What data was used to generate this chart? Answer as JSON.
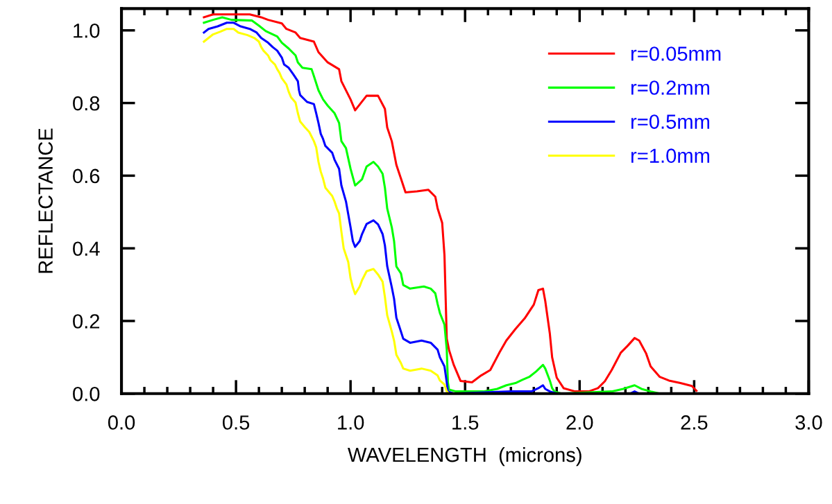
{
  "chart_data": {
    "type": "line",
    "xlabel": "WAVELENGTH  (microns)",
    "ylabel": "REFLECTANCE",
    "xlim": [
      0,
      3
    ],
    "ylim": [
      0,
      1.06
    ],
    "xticks": [
      {
        "value": 0,
        "label": "0.0"
      },
      {
        "value": 0.5,
        "label": "0.5"
      },
      {
        "value": 1,
        "label": "1.0"
      },
      {
        "value": 1.5,
        "label": "1.5"
      },
      {
        "value": 2,
        "label": "2.0"
      },
      {
        "value": 2.5,
        "label": "2.5"
      },
      {
        "value": 3,
        "label": "3.0"
      }
    ],
    "yticks": [
      {
        "value": 0,
        "label": "0.0"
      },
      {
        "value": 0.2,
        "label": "0.2"
      },
      {
        "value": 0.4,
        "label": "0.4"
      },
      {
        "value": 0.6,
        "label": "0.6"
      },
      {
        "value": 0.8,
        "label": "0.8"
      },
      {
        "value": 1,
        "label": "1.0"
      }
    ],
    "grid": false,
    "legend": "top right",
    "marker": "none",
    "line_style": "solid",
    "series": [
      {
        "name": "r=0.05mm",
        "color": "#ff0000",
        "x": [
          0.36,
          0.4,
          0.56,
          0.61,
          0.64,
          0.7,
          0.72,
          0.76,
          0.78,
          0.84,
          0.86,
          0.9,
          0.95,
          0.96,
          1.0,
          1.02,
          1.07,
          1.12,
          1.15,
          1.16,
          1.18,
          1.2,
          1.22,
          1.24,
          1.29,
          1.34,
          1.37,
          1.38,
          1.4,
          1.41,
          1.42,
          1.43,
          1.45,
          1.48,
          1.53,
          1.57,
          1.61,
          1.65,
          1.68,
          1.72,
          1.76,
          1.8,
          1.82,
          1.84,
          1.85,
          1.87,
          1.88,
          1.9,
          1.93,
          1.98,
          2.04,
          2.08,
          2.11,
          2.14,
          2.18,
          2.21,
          2.24,
          2.26,
          2.29,
          2.31,
          2.35,
          2.39,
          2.44,
          2.49,
          2.51
        ],
        "values": [
          1.036,
          1.044,
          1.044,
          1.036,
          1.029,
          1.019,
          1.004,
          0.994,
          0.979,
          0.969,
          0.94,
          0.912,
          0.893,
          0.86,
          0.81,
          0.78,
          0.82,
          0.82,
          0.784,
          0.733,
          0.695,
          0.63,
          0.592,
          0.554,
          0.557,
          0.561,
          0.542,
          0.51,
          0.47,
          0.381,
          0.151,
          0.12,
          0.08,
          0.035,
          0.031,
          0.05,
          0.065,
          0.113,
          0.146,
          0.178,
          0.207,
          0.245,
          0.285,
          0.289,
          0.255,
          0.165,
          0.1,
          0.044,
          0.015,
          0.006,
          0.006,
          0.015,
          0.034,
          0.065,
          0.113,
          0.132,
          0.153,
          0.146,
          0.111,
          0.075,
          0.046,
          0.036,
          0.029,
          0.021,
          0.008
        ]
      },
      {
        "name": "r=0.2mm",
        "color": "#00ff00",
        "x": [
          0.36,
          0.4,
          0.44,
          0.48,
          0.57,
          0.6,
          0.63,
          0.68,
          0.7,
          0.73,
          0.76,
          0.77,
          0.79,
          0.83,
          0.84,
          0.86,
          0.88,
          0.9,
          0.93,
          0.95,
          0.96,
          0.98,
          1.0,
          1.02,
          1.05,
          1.07,
          1.1,
          1.12,
          1.14,
          1.15,
          1.16,
          1.18,
          1.19,
          1.2,
          1.22,
          1.23,
          1.26,
          1.32,
          1.35,
          1.37,
          1.38,
          1.39,
          1.41,
          1.42,
          1.425,
          1.43,
          1.46,
          1.58,
          1.64,
          1.68,
          1.72,
          1.75,
          1.78,
          1.81,
          1.84,
          1.85,
          1.87,
          1.88,
          1.89,
          1.92,
          2.14,
          2.19,
          2.24,
          2.27,
          2.31,
          2.35,
          2.51
        ],
        "values": [
          1.021,
          1.029,
          1.036,
          1.029,
          1.027,
          1.013,
          0.998,
          0.983,
          0.966,
          0.95,
          0.931,
          0.912,
          0.897,
          0.893,
          0.874,
          0.835,
          0.81,
          0.793,
          0.772,
          0.745,
          0.695,
          0.676,
          0.619,
          0.573,
          0.59,
          0.625,
          0.638,
          0.625,
          0.605,
          0.567,
          0.51,
          0.458,
          0.42,
          0.35,
          0.331,
          0.299,
          0.289,
          0.295,
          0.289,
          0.276,
          0.247,
          0.222,
          0.19,
          0.121,
          0.031,
          0.011,
          0.006,
          0.006,
          0.013,
          0.023,
          0.029,
          0.038,
          0.046,
          0.061,
          0.079,
          0.069,
          0.036,
          0.015,
          0.006,
          0,
          0.006,
          0.013,
          0.023,
          0.013,
          0.006,
          0,
          0
        ]
      },
      {
        "name": "r=0.5mm",
        "color": "#0000ff",
        "x": [
          0.36,
          0.38,
          0.42,
          0.46,
          0.49,
          0.52,
          0.56,
          0.59,
          0.61,
          0.64,
          0.66,
          0.68,
          0.7,
          0.71,
          0.73,
          0.75,
          0.77,
          0.775,
          0.78,
          0.81,
          0.84,
          0.85,
          0.86,
          0.87,
          0.88,
          0.89,
          0.92,
          0.93,
          0.95,
          0.96,
          0.98,
          1.0,
          1.01,
          1.02,
          1.04,
          1.05,
          1.07,
          1.1,
          1.12,
          1.14,
          1.15,
          1.16,
          1.18,
          1.19,
          1.2,
          1.22,
          1.23,
          1.26,
          1.31,
          1.35,
          1.38,
          1.39,
          1.41,
          1.42,
          1.425,
          1.45,
          1.7,
          1.79,
          1.82,
          1.84,
          1.85,
          1.87,
          1.9,
          2.22,
          2.24,
          2.26,
          2.51
        ],
        "values": [
          0.994,
          1.004,
          1.011,
          1.021,
          1.021,
          1.011,
          1.004,
          0.994,
          0.979,
          0.966,
          0.954,
          0.944,
          0.925,
          0.906,
          0.897,
          0.879,
          0.86,
          0.835,
          0.822,
          0.803,
          0.797,
          0.772,
          0.745,
          0.715,
          0.701,
          0.682,
          0.663,
          0.644,
          0.619,
          0.573,
          0.529,
          0.458,
          0.42,
          0.404,
          0.42,
          0.439,
          0.467,
          0.477,
          0.466,
          0.439,
          0.408,
          0.351,
          0.293,
          0.261,
          0.209,
          0.171,
          0.151,
          0.14,
          0.146,
          0.14,
          0.121,
          0.1,
          0.075,
          0.031,
          0.006,
          0,
          0.006,
          0.006,
          0.015,
          0.023,
          0.013,
          0.006,
          0,
          0,
          0.006,
          0,
          0
        ]
      },
      {
        "name": "r=1.0mm",
        "color": "#ffff00",
        "x": [
          0.36,
          0.38,
          0.4,
          0.43,
          0.46,
          0.49,
          0.51,
          0.55,
          0.58,
          0.6,
          0.61,
          0.62,
          0.64,
          0.65,
          0.67,
          0.68,
          0.69,
          0.7,
          0.72,
          0.73,
          0.74,
          0.76,
          0.77,
          0.78,
          0.8,
          0.82,
          0.84,
          0.85,
          0.86,
          0.87,
          0.88,
          0.89,
          0.92,
          0.93,
          0.94,
          0.95,
          0.96,
          0.97,
          0.99,
          1.0,
          1.01,
          1.02,
          1.04,
          1.05,
          1.07,
          1.1,
          1.12,
          1.14,
          1.15,
          1.16,
          1.18,
          1.19,
          1.2,
          1.22,
          1.23,
          1.26,
          1.31,
          1.35,
          1.38,
          1.39,
          1.41,
          1.42,
          1.43,
          2.51
        ],
        "values": [
          0.969,
          0.979,
          0.989,
          0.996,
          1.004,
          1.004,
          0.994,
          0.987,
          0.979,
          0.969,
          0.954,
          0.944,
          0.931,
          0.918,
          0.906,
          0.893,
          0.883,
          0.868,
          0.851,
          0.831,
          0.816,
          0.801,
          0.772,
          0.749,
          0.734,
          0.72,
          0.695,
          0.678,
          0.638,
          0.611,
          0.592,
          0.567,
          0.544,
          0.529,
          0.51,
          0.496,
          0.446,
          0.4,
          0.362,
          0.318,
          0.293,
          0.274,
          0.295,
          0.312,
          0.337,
          0.343,
          0.328,
          0.308,
          0.266,
          0.216,
          0.171,
          0.146,
          0.107,
          0.084,
          0.069,
          0.063,
          0.069,
          0.063,
          0.05,
          0.036,
          0.025,
          0.006,
          0,
          0
        ]
      }
    ]
  }
}
